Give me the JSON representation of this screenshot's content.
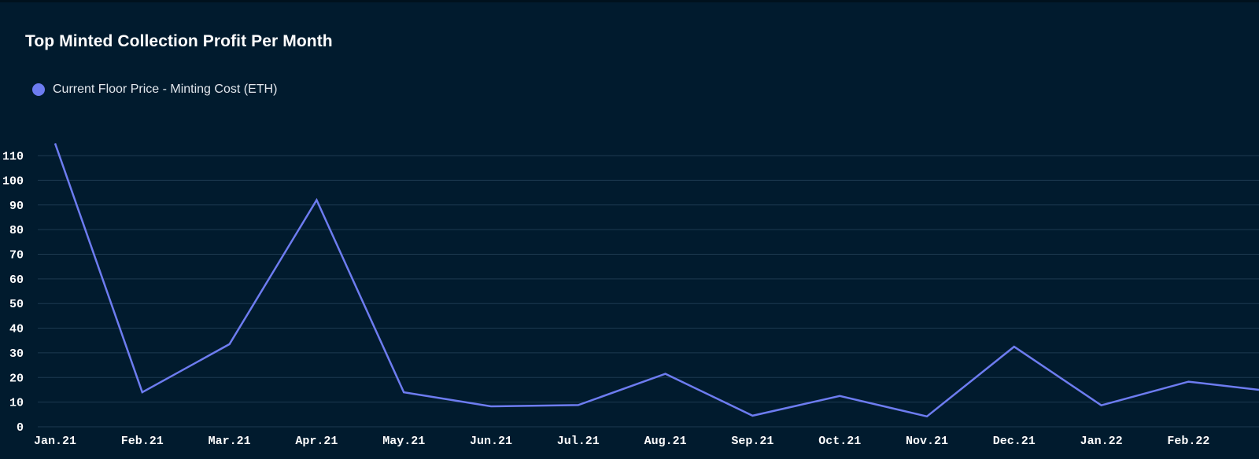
{
  "title": "Top Minted Collection Profit Per Month",
  "legend": {
    "label": "Current Floor Price - Minting Cost (ETH)",
    "color": "#6d7cf0"
  },
  "colors": {
    "background": "#011b2e",
    "grid": "#1d3a50",
    "line": "#6d7cf0",
    "text": "#ffffff"
  },
  "chart_data": {
    "type": "line",
    "title": "Top Minted Collection Profit Per Month",
    "xlabel": "",
    "ylabel": "",
    "categories": [
      "Jan.21",
      "Feb.21",
      "Mar.21",
      "Apr.21",
      "May.21",
      "Jun.21",
      "Jul.21",
      "Aug.21",
      "Sep.21",
      "Oct.21",
      "Nov.21",
      "Dec.21",
      "Jan.22",
      "Feb.22"
    ],
    "series": [
      {
        "name": "Current Floor Price - Minting Cost (ETH)",
        "values": [
          115,
          14,
          33.5,
          92,
          14,
          8.3,
          8.8,
          21.5,
          4.5,
          12.5,
          4.2,
          32.5,
          8.7,
          18.3
        ]
      }
    ],
    "line_tail_value": 15,
    "ylim": [
      0,
      110
    ],
    "yticks": [
      0,
      10,
      20,
      30,
      40,
      50,
      60,
      70,
      80,
      90,
      100,
      110
    ],
    "grid": true,
    "legend_position": "top-left"
  }
}
